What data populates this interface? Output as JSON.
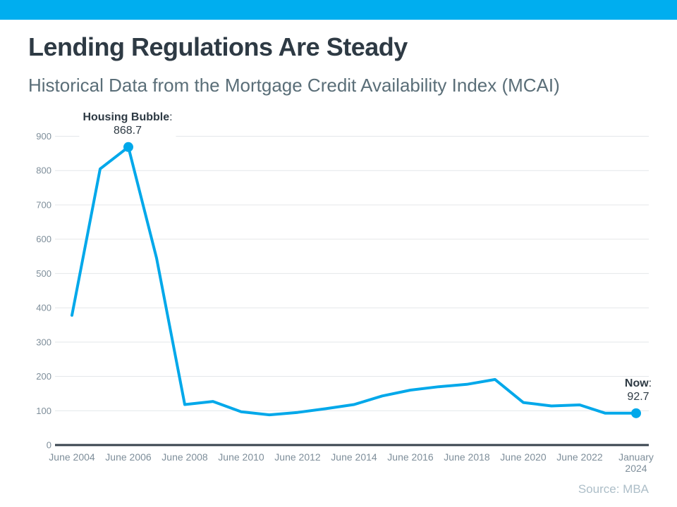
{
  "header": {
    "title": "Lending Regulations Are Steady",
    "subtitle": "Historical Data from the Mortgage Credit Availability Index (MCAI)"
  },
  "footer": {
    "source": "Source: MBA"
  },
  "colors": {
    "accent_bar": "#00AEEF",
    "title": "#2E3A44",
    "subtitle": "#5A6E78",
    "source": "#ADBEC8"
  },
  "annotations": {
    "peak": {
      "label": "Housing Bubble",
      "separator": ":",
      "value": "868.7"
    },
    "now": {
      "label": "Now",
      "separator": ":",
      "value": "92.7"
    }
  },
  "chart_data": {
    "type": "line",
    "title": "Mortgage Credit Availability Index (MCAI)",
    "xlabel": "",
    "ylabel": "",
    "ylim": [
      0,
      950
    ],
    "yticks": [
      0,
      100,
      200,
      300,
      400,
      500,
      600,
      700,
      800,
      900
    ],
    "grid": true,
    "legend": false,
    "line_color": "#00A8EA",
    "grid_color": "#E4E7EA",
    "axis_color": "#37424C",
    "tick_label_color": "#7E8E9A",
    "x_tick_labels": [
      {
        "text": "June 2004"
      },
      {
        "text": "June 2006"
      },
      {
        "text": "June 2008"
      },
      {
        "text": "June 2010"
      },
      {
        "text": "June 2012"
      },
      {
        "text": "June 2014"
      },
      {
        "text": "June 2016"
      },
      {
        "text": "June 2018"
      },
      {
        "text": "June 2020"
      },
      {
        "text": "June 2022"
      },
      {
        "text": "January 2024",
        "wrap": true
      }
    ],
    "points": [
      {
        "x": "June 2004",
        "xi": 0,
        "y": 378
      },
      {
        "x": "June 2005",
        "xi": 1,
        "y": 805
      },
      {
        "x": "June 2006",
        "xi": 2,
        "y": 868.7
      },
      {
        "x": "June 2007",
        "xi": 3,
        "y": 545
      },
      {
        "x": "June 2008",
        "xi": 4,
        "y": 118
      },
      {
        "x": "June 2009",
        "xi": 5,
        "y": 127
      },
      {
        "x": "June 2010",
        "xi": 6,
        "y": 97
      },
      {
        "x": "June 2011",
        "xi": 7,
        "y": 88
      },
      {
        "x": "June 2012",
        "xi": 8,
        "y": 95
      },
      {
        "x": "June 2013",
        "xi": 9,
        "y": 106
      },
      {
        "x": "June 2014",
        "xi": 10,
        "y": 118
      },
      {
        "x": "June 2015",
        "xi": 11,
        "y": 143
      },
      {
        "x": "June 2016",
        "xi": 12,
        "y": 160
      },
      {
        "x": "June 2017",
        "xi": 13,
        "y": 170
      },
      {
        "x": "June 2018",
        "xi": 14,
        "y": 177
      },
      {
        "x": "June 2019",
        "xi": 15,
        "y": 191
      },
      {
        "x": "June 2020",
        "xi": 16,
        "y": 124
      },
      {
        "x": "June 2021",
        "xi": 17,
        "y": 114
      },
      {
        "x": "June 2022",
        "xi": 18,
        "y": 117
      },
      {
        "x": "June 2023",
        "xi": 18.9,
        "y": 93
      },
      {
        "x": "January 2024",
        "xi": 20,
        "y": 92.7
      }
    ],
    "markers": [
      "June 2006",
      "January 2024"
    ]
  }
}
